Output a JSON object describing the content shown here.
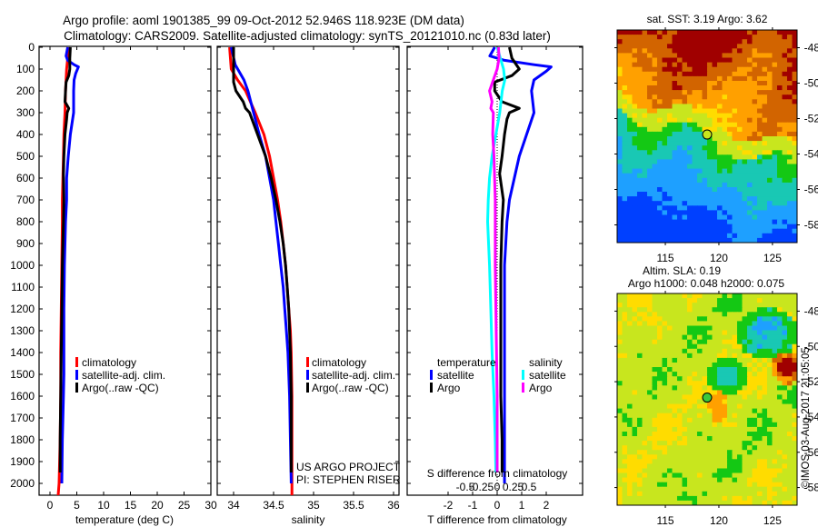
{
  "chart_data": [
    {
      "type": "line",
      "id": "temperature",
      "title": "Argo profile: aoml 1901385_99 09-Oct-2012 52.946S 118.923E (DM data)",
      "subtitle": "Climatology: CARS2009. Satellite-adjusted climatology: synTS_20121010.nc (0.83d later)",
      "xlabel": "temperature (deg C)",
      "ylabel": "",
      "xlim": [
        -2,
        32
      ],
      "ylim": [
        2060,
        0
      ],
      "xticks": [
        0,
        5,
        10,
        15,
        20,
        25,
        30
      ],
      "yticks": [
        0,
        100,
        200,
        300,
        400,
        500,
        600,
        700,
        800,
        900,
        1000,
        1100,
        1200,
        1300,
        1400,
        1500,
        1600,
        1700,
        1800,
        1900,
        2000
      ],
      "grid": false,
      "legend": {
        "placement": "lower-middle",
        "entries": [
          "climatology",
          "satellite-adj. clim.",
          "Argo(..raw -QC)"
        ]
      },
      "series": [
        {
          "name": "climatology",
          "color": "#ff0000",
          "depth": [
            0,
            50,
            100,
            150,
            200,
            300,
            400,
            500,
            600,
            700,
            800,
            1000,
            1200,
            1400,
            1600,
            1800,
            2000,
            2060
          ],
          "values": [
            3.4,
            3.3,
            3.1,
            3.0,
            2.9,
            2.8,
            2.6,
            2.5,
            2.4,
            2.3,
            2.3,
            2.2,
            2.1,
            2.0,
            2.0,
            1.9,
            1.7,
            1.5
          ]
        },
        {
          "name": "satellite-adj. clim.",
          "color": "#0000ff",
          "depth": [
            0,
            40,
            60,
            80,
            90,
            120,
            150,
            200,
            300,
            350,
            400,
            500,
            600,
            700,
            800,
            1000,
            1200,
            1400,
            1500,
            1600,
            1800,
            2000
          ],
          "values": [
            3.3,
            3.0,
            3.3,
            4.5,
            5.3,
            4.8,
            4.5,
            4.4,
            4.4,
            4.1,
            3.8,
            3.4,
            3.1,
            3.1,
            2.9,
            2.7,
            2.6,
            2.6,
            2.6,
            2.5,
            2.3,
            2.2
          ]
        },
        {
          "name": "Argo(..raw -QC)",
          "color": "#000000",
          "depth": [
            0,
            50,
            100,
            130,
            160,
            200,
            250,
            280,
            300,
            330,
            400,
            500,
            580,
            700,
            800,
            1000,
            1200,
            1400,
            1600,
            1800,
            1950
          ],
          "values": [
            3.8,
            3.7,
            3.7,
            3.5,
            3.0,
            2.9,
            2.8,
            3.5,
            3.2,
            3.1,
            2.8,
            2.6,
            2.5,
            2.6,
            2.5,
            2.3,
            2.2,
            2.1,
            2.0,
            1.9,
            1.9
          ]
        }
      ]
    },
    {
      "type": "line",
      "id": "salinity",
      "xlabel": "salinity",
      "xlim": [
        33.8,
        36.1
      ],
      "ylim": [
        2060,
        0
      ],
      "xticks": [
        34,
        34.5,
        35,
        35.5,
        36
      ],
      "xtick_labels": [
        "34",
        "34.5",
        "35",
        "35.5",
        "36"
      ],
      "legend": {
        "placement": "lower-right",
        "entries": [
          "climatology",
          "satellite-adj. clim.",
          "Argo(..raw -QC)"
        ]
      },
      "annotations": [
        "US ARGO PROJECT",
        "PI: STEPHEN RISER"
      ],
      "series": [
        {
          "name": "climatology",
          "color": "#ff0000",
          "depth": [
            0,
            100,
            150,
            200,
            300,
            400,
            500,
            600,
            700,
            800,
            900,
            1000,
            1100,
            1200,
            1300,
            1400,
            1600,
            1800,
            2000,
            2060
          ],
          "values": [
            33.95,
            33.97,
            34.05,
            34.15,
            34.27,
            34.38,
            34.45,
            34.5,
            34.55,
            34.59,
            34.62,
            34.65,
            34.67,
            34.69,
            34.71,
            34.72,
            34.73,
            34.73,
            34.73,
            34.73
          ]
        },
        {
          "name": "satellite-adj. clim.",
          "color": "#0000ff",
          "depth": [
            0,
            80,
            150,
            200,
            300,
            400,
            500,
            600,
            700,
            800,
            900,
            1000,
            1100,
            1200,
            1300,
            1400,
            1600,
            1800,
            2000
          ],
          "values": [
            33.97,
            34.02,
            34.13,
            34.18,
            34.25,
            34.32,
            34.4,
            34.45,
            34.5,
            34.53,
            34.56,
            34.59,
            34.62,
            34.64,
            34.66,
            34.68,
            34.7,
            34.71,
            34.72
          ]
        },
        {
          "name": "Argo(..raw -QC)",
          "color": "#000000",
          "depth": [
            0,
            100,
            160,
            200,
            250,
            280,
            300,
            400,
            500,
            600,
            700,
            800,
            900,
            1000,
            1100,
            1200,
            1300,
            1400,
            1600,
            1800,
            1950
          ],
          "values": [
            34.0,
            34.0,
            34.0,
            34.03,
            34.12,
            34.15,
            34.2,
            34.3,
            34.4,
            34.47,
            34.53,
            34.58,
            34.62,
            34.65,
            34.67,
            34.69,
            34.7,
            34.71,
            34.72,
            34.72,
            34.72
          ]
        }
      ]
    },
    {
      "type": "line",
      "id": "difference",
      "xlabel": "T difference from climatology",
      "xlim": [
        -2.8,
        3.0
      ],
      "xticks": [
        -2,
        -1,
        0,
        1,
        2
      ],
      "secondary_xlabel": "S difference from climatology",
      "secondary_xticks": [
        -0.5,
        -0.25,
        0,
        0.25,
        0.5
      ],
      "secondary_xtick_labels": [
        "-0.5",
        "-0.25",
        "0",
        "0.25",
        "0.5"
      ],
      "ylim": [
        2060,
        0
      ],
      "legend": {
        "placement": "lower-middle",
        "groups": [
          {
            "title": "temperature",
            "entries": [
              "satellite",
              "Argo"
            ]
          },
          {
            "title": "salinity",
            "entries": [
              "satellite",
              "Argo"
            ]
          }
        ]
      },
      "series": [
        {
          "name": "temperature satellite",
          "color": "#0000ff",
          "axis": "T",
          "depth": [
            0,
            40,
            60,
            80,
            90,
            110,
            150,
            200,
            300,
            400,
            500,
            600,
            700,
            800,
            1000,
            1200,
            1400,
            1600,
            1800,
            2000
          ],
          "values": [
            -0.1,
            -0.3,
            0.3,
            1.5,
            2.2,
            2.0,
            1.5,
            1.4,
            1.5,
            1.2,
            0.9,
            0.7,
            0.5,
            0.4,
            0.3,
            0.3,
            0.3,
            0.3,
            0.3,
            0.3
          ]
        },
        {
          "name": "temperature Argo",
          "color": "#000000",
          "axis": "T",
          "depth": [
            0,
            50,
            100,
            130,
            160,
            200,
            250,
            280,
            300,
            330,
            400,
            500,
            580,
            700,
            800,
            1000,
            1200,
            1400,
            1600,
            1800,
            1950
          ],
          "values": [
            0.5,
            0.6,
            0.9,
            0.6,
            -0.1,
            -0.1,
            0.2,
            0.9,
            0.5,
            0.4,
            0.3,
            0.2,
            0.1,
            0.25,
            0.2,
            0.15,
            0.15,
            0.15,
            0.15,
            0.2,
            0.2
          ]
        },
        {
          "name": "salinity satellite",
          "color": "#00ffff",
          "axis": "S",
          "depth": [
            0,
            50,
            100,
            150,
            200,
            300,
            400,
            500,
            600,
            700,
            800,
            1000,
            1200,
            1400,
            1600,
            1800,
            1950
          ],
          "values": [
            0.0,
            0.05,
            0.1,
            0.12,
            0.08,
            0.04,
            -0.02,
            -0.08,
            -0.12,
            -0.14,
            -0.15,
            -0.12,
            -0.1,
            -0.08,
            -0.05,
            -0.03,
            -0.02
          ]
        },
        {
          "name": "salinity Argo",
          "color": "#ff00ff",
          "axis": "S",
          "depth": [
            0,
            50,
            100,
            150,
            200,
            250,
            280,
            300,
            400,
            500,
            600,
            700,
            800,
            1000,
            1200,
            1400,
            1600,
            1800,
            1950
          ],
          "values": [
            0.02,
            0.03,
            0.0,
            -0.06,
            -0.12,
            -0.08,
            -0.1,
            -0.06,
            -0.07,
            -0.05,
            -0.04,
            -0.03,
            -0.03,
            -0.03,
            -0.02,
            -0.01,
            0.0,
            0.0,
            0.0
          ]
        }
      ]
    },
    {
      "type": "heatmap",
      "id": "sst-map",
      "title": "sat. SST: 3.19 Argo: 3.62",
      "xlim": [
        110.5,
        127.3
      ],
      "ylim": [
        -59,
        -47
      ],
      "xticks": [
        115,
        120,
        125
      ],
      "yticks": [
        -48,
        -50,
        -52,
        -54,
        -56,
        -58
      ],
      "marker": {
        "lon": 118.9,
        "lat": -52.9,
        "color": "#c8e61e"
      }
    },
    {
      "type": "heatmap",
      "id": "sla-map",
      "title": "Altim. SLA: 0.19",
      "subtitle": "Argo h1000: 0.048 h2000: 0.075",
      "xlim": [
        110.5,
        127.3
      ],
      "ylim": [
        -59,
        -47
      ],
      "xticks": [
        115,
        120,
        125
      ],
      "yticks": [
        -48,
        -50,
        -52,
        -54,
        -56,
        -58
      ],
      "marker": {
        "lon": 118.9,
        "lat": -52.9,
        "color": "#3cc83c"
      }
    }
  ],
  "credit": "©IMOS 03-Aug-2017 21:05:05"
}
